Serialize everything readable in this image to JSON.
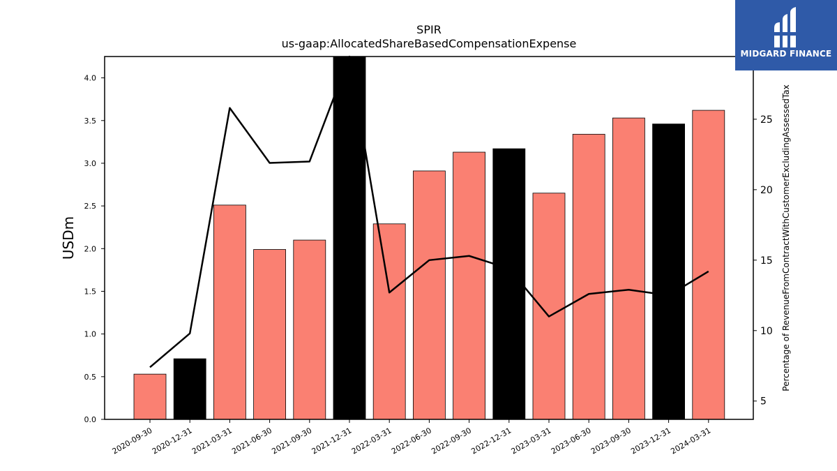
{
  "chart_data": {
    "type": "bar",
    "title": "SPIR",
    "subtitle": "us-gaap:AllocatedShareBasedCompensationExpense",
    "ylabel": "USDm",
    "y2label": "Percentage of RevenueFromContractWithCustomerExcludingAssessedTax",
    "categories": [
      "2020-09-30",
      "2020-12-31",
      "2021-03-31",
      "2021-06-30",
      "2021-09-30",
      "2021-12-31",
      "2022-03-31",
      "2022-06-30",
      "2022-09-30",
      "2022-12-31",
      "2023-03-31",
      "2023-06-30",
      "2023-09-30",
      "2023-12-31",
      "2024-03-31"
    ],
    "series": [
      {
        "values": [
          0.53,
          0.71,
          2.51,
          1.99,
          2.1,
          4.25,
          2.29,
          2.91,
          3.13,
          3.17,
          2.65,
          3.34,
          3.53,
          3.46,
          3.62
        ],
        "colors": [
          "#fa8072",
          "#000000",
          "#fa8072",
          "#fa8072",
          "#fa8072",
          "#000000",
          "#fa8072",
          "#fa8072",
          "#fa8072",
          "#000000",
          "#fa8072",
          "#fa8072",
          "#fa8072",
          "#000000",
          "#fa8072"
        ]
      },
      {
        "type": "line",
        "axis": "right",
        "values": [
          7.4,
          9.8,
          25.8,
          21.9,
          22.0,
          30.0,
          12.7,
          15.0,
          15.3,
          14.4,
          11.0,
          12.6,
          12.9,
          12.5,
          14.2
        ]
      }
    ],
    "ylim": [
      0,
      4.25
    ],
    "yticks": [
      "0.0",
      "0.5",
      "1.0",
      "1.5",
      "2.0",
      "2.5",
      "3.0",
      "3.5",
      "4.0"
    ],
    "y2lim": [
      3.7,
      29.45
    ],
    "y2ticks": [
      "5",
      "10",
      "15",
      "20",
      "25"
    ],
    "grid": false
  },
  "logo": {
    "text": "MIDGARD FINANCE"
  }
}
